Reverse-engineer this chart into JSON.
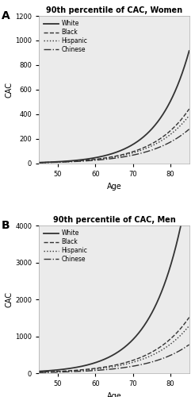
{
  "title_women": "90th percentile of CAC, Women",
  "title_men": "90th percentile of CAC, Men",
  "xlabel": "Age",
  "ylabel": "CAC",
  "panel_a": "A",
  "panel_b": "B",
  "line_color": "#333333",
  "background_color": "#ebebeb",
  "ylim_women": [
    0,
    1200
  ],
  "ylim_men": [
    0,
    4000
  ],
  "yticks_women": [
    0,
    200,
    400,
    600,
    800,
    1000,
    1200
  ],
  "yticks_men": [
    0,
    1000,
    2000,
    3000,
    4000
  ],
  "xticks": [
    50,
    60,
    70,
    80
  ],
  "age_min": 45,
  "age_max": 85,
  "women_curves": {
    "white": {
      "a0": 8.0,
      "rate": 0.1185
    },
    "black": {
      "a0": 7.5,
      "rate": 0.102
    },
    "hispanic": {
      "a0": 7.0,
      "rate": 0.1005
    },
    "chinese": {
      "a0": 6.5,
      "rate": 0.094
    }
  },
  "men_curves": {
    "white": {
      "a0": 50.0,
      "rate": 0.116
    },
    "black": {
      "a0": 30.0,
      "rate": 0.098
    },
    "hispanic": {
      "a0": 25.0,
      "rate": 0.0985
    },
    "chinese": {
      "a0": 18.0,
      "rate": 0.094
    }
  },
  "legend_entries": [
    {
      "label": "White",
      "linestyle": "-"
    },
    {
      "label": "Black",
      "linestyle": "--"
    },
    {
      "label": "Hispanic",
      "linestyle": ":"
    },
    {
      "label": "Chinese",
      "linestyle": "-."
    }
  ]
}
